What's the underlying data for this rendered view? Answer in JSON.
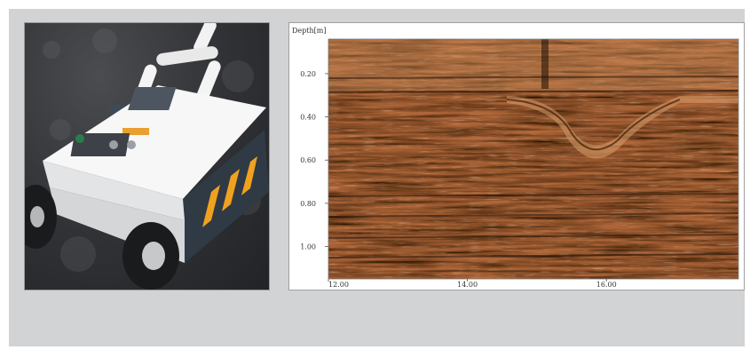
{
  "photo": {
    "subject": "gpr-cart-icon"
  },
  "chart_data": {
    "type": "heatmap",
    "ylabel": "Depth[m]",
    "xlabel": "",
    "y_ticks": [
      "0.20",
      "0.40",
      "0.60",
      "0.80",
      "1.00"
    ],
    "x_ticks": [
      "12.00",
      "14.00",
      "16.00"
    ],
    "y_tick_values": [
      0.2,
      0.4,
      0.6,
      0.8,
      1.0
    ],
    "x_tick_values": [
      12.0,
      14.0,
      16.0
    ],
    "xlim": [
      12.0,
      17.9
    ],
    "ylim": [
      1.15,
      0.04
    ],
    "colors": {
      "dark": "#2a1606",
      "mid": "#b4693a",
      "light": "#f2c79c"
    }
  }
}
